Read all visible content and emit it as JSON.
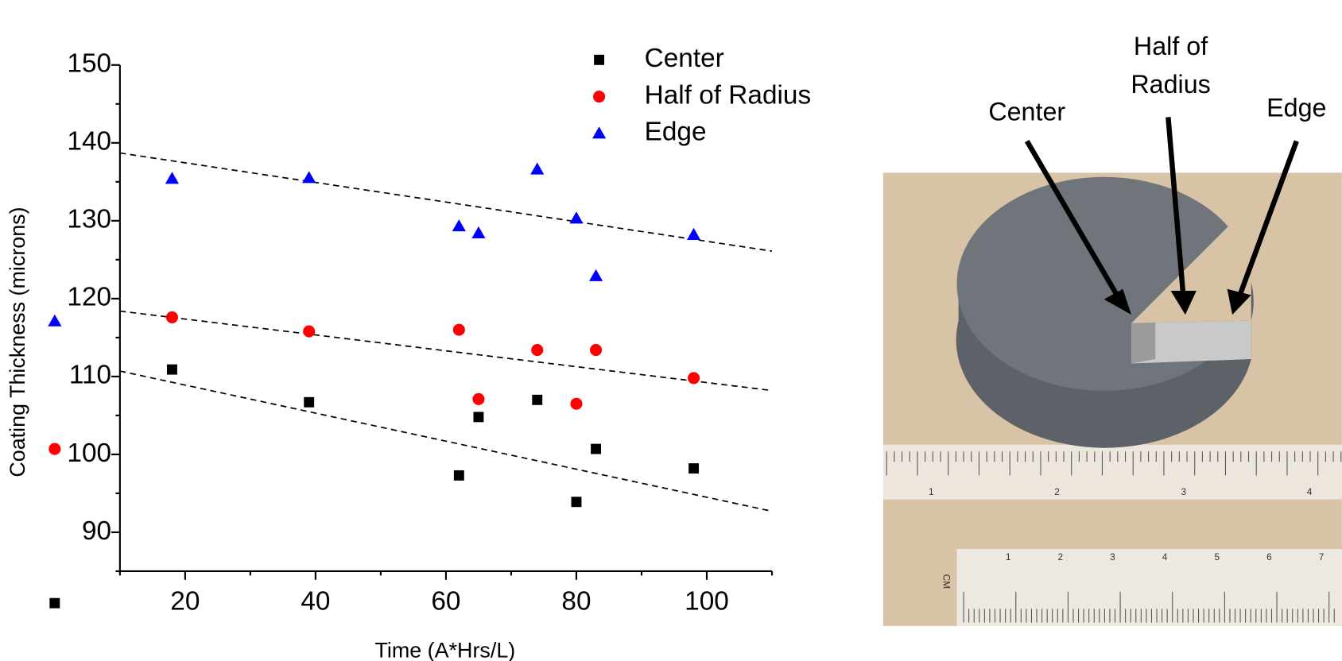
{
  "chart_data": {
    "type": "scatter",
    "x_label": "Time (A*Hrs/L)",
    "y_label": "Coating Thickness (microns)",
    "x": [
      0,
      18,
      39,
      62,
      65,
      74,
      80,
      83,
      98
    ],
    "series": [
      {
        "name": "Center",
        "color": "#000000",
        "marker": "square",
        "values": [
          80.9,
          110.9,
          106.7,
          97.3,
          104.8,
          107,
          93.9,
          100.7,
          98.2
        ]
      },
      {
        "name": "Half of Radius",
        "color": "#ff0000",
        "marker": "circle",
        "values": [
          100.7,
          117.6,
          115.8,
          116,
          107.1,
          113.4,
          106.5,
          113.4,
          109.8
        ]
      },
      {
        "name": "Edge",
        "color": "#0000ff",
        "marker": "triangle",
        "values": [
          117.1,
          135.4,
          135.5,
          129.3,
          128.4,
          136.6,
          130.3,
          122.9,
          128.2
        ]
      }
    ],
    "trendlines": [
      {
        "x": [
          10,
          110
        ],
        "values": [
          110.7,
          92.7
        ]
      },
      {
        "x": [
          10,
          110
        ],
        "values": [
          118.4,
          108.2
        ]
      },
      {
        "x": [
          10,
          110
        ],
        "values": [
          138.7,
          126.1
        ]
      }
    ],
    "xlim": [
      10,
      110
    ],
    "ylim": [
      85,
      150
    ],
    "xticks": [
      20,
      40,
      60,
      80,
      100
    ],
    "yticks": [
      90,
      100,
      110,
      120,
      130,
      140,
      150
    ],
    "xminor_ticks": [
      10,
      30,
      50,
      70,
      90,
      110
    ],
    "yminor_ticks": [
      85,
      95,
      105,
      115,
      125,
      135,
      145
    ],
    "legend": "upper right"
  },
  "photo": {
    "labels": {
      "center": "Center",
      "half": [
        "Half of",
        "Radius"
      ],
      "edge": "Edge"
    },
    "ruler_inches": [
      1,
      2,
      3,
      4
    ],
    "ruler_cm_unit": "CM",
    "ruler_cm": [
      1,
      2,
      3,
      4,
      5,
      6,
      7
    ]
  }
}
